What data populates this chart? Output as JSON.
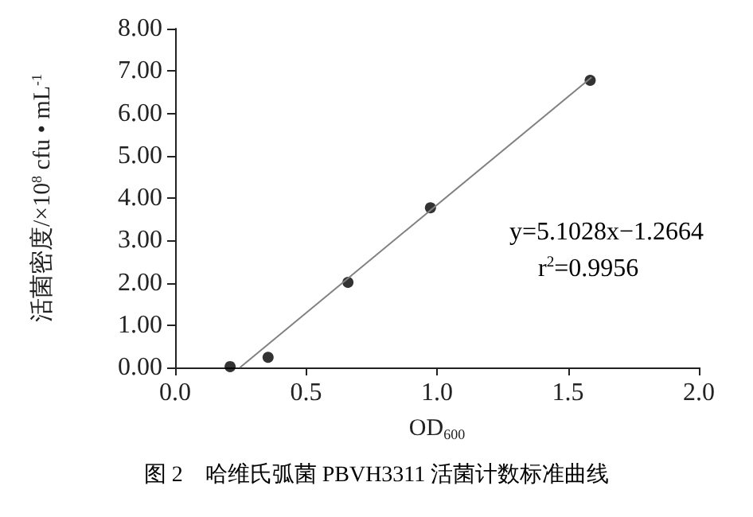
{
  "chart_data": {
    "type": "scatter",
    "xlabel": "OD$_{600}$",
    "ylabel": "活菌密度/×10$^{8}$ cfu • mL$^{-1}$",
    "x": [
      0.21,
      0.355,
      0.66,
      0.975,
      1.585
    ],
    "series": [
      {
        "color": "#000000",
        "values": [
          0.02,
          0.24,
          2.01,
          3.77,
          6.78
        ],
        "marker": "circle"
      },
      {
        "type": "line",
        "color": "#808080",
        "x": [
          0.248,
          1.59
        ],
        "values": [
          0,
          6.85
        ],
        "marker": "none"
      }
    ],
    "xlim": [
      0,
      2
    ],
    "xticks": [
      {
        "value": 0,
        "label": "0.0"
      },
      {
        "value": 0.5,
        "label": "0.5"
      },
      {
        "value": 1,
        "label": "1.0"
      },
      {
        "value": 1.5,
        "label": "1.5"
      },
      {
        "value": 2,
        "label": "2.0"
      }
    ],
    "ylim": [
      0,
      8
    ],
    "yticks": [
      {
        "value": 0,
        "label": "0.00"
      },
      {
        "value": 1,
        "label": "1.00"
      },
      {
        "value": 2,
        "label": "2.00"
      },
      {
        "value": 3,
        "label": "3.00"
      },
      {
        "value": 4,
        "label": "4.00"
      },
      {
        "value": 5,
        "label": "5.00"
      },
      {
        "value": 6,
        "label": "6.00"
      },
      {
        "value": 7,
        "label": "7.00"
      },
      {
        "value": 8,
        "label": "8.00"
      }
    ],
    "grid": false,
    "annotations": [
      "y=5.1028x−1.2664",
      "r$^{2}$=0.9956",
      "图 2　哈维氏弧菌 PBVH3311 活菌计数标准曲线"
    ]
  }
}
